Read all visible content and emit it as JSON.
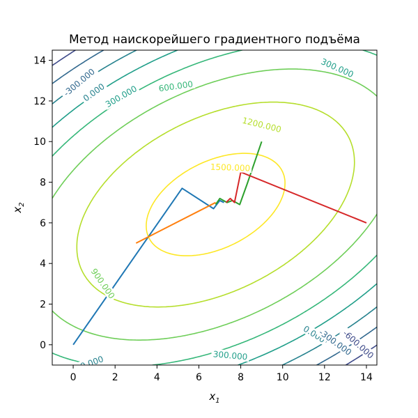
{
  "chart_data": {
    "type": "line",
    "title": "Метод наискорейшего градиентного подъёма",
    "xlabel": "x",
    "xlabel_sub": "1",
    "ylabel": "x",
    "ylabel_sub": "2",
    "xlim": [
      -1,
      14.5
    ],
    "ylim": [
      -1,
      14.5
    ],
    "xticks": [
      0,
      2,
      4,
      6,
      8,
      10,
      12,
      14
    ],
    "yticks": [
      0,
      2,
      4,
      6,
      8,
      10,
      12,
      14
    ],
    "grid": false,
    "contours": {
      "levels": [
        -600,
        -300,
        0,
        300,
        600,
        900,
        1200,
        1500
      ],
      "colors": [
        "#3b0f70",
        "#3e4a89",
        "#31688e",
        "#26828e",
        "#1f9e89",
        "#35b779",
        "#6ece58",
        "#b5de2b",
        "#fde725"
      ],
      "labels": [
        {
          "text": "-300.000",
          "x": 0.3,
          "y": 12.9,
          "angle": -40,
          "level": -300
        },
        {
          "text": "0.000",
          "x": 1.0,
          "y": 12.4,
          "angle": -36,
          "level": 0
        },
        {
          "text": "300.000",
          "x": 2.3,
          "y": 12.2,
          "angle": -30,
          "level": 300
        },
        {
          "text": "600.000",
          "x": 4.9,
          "y": 12.7,
          "angle": -8,
          "level": 600
        },
        {
          "text": "300.000",
          "x": 12.6,
          "y": 13.6,
          "angle": 24,
          "level": 300
        },
        {
          "text": "1200.000",
          "x": 9.0,
          "y": 10.8,
          "angle": 14,
          "level": 1200
        },
        {
          "text": "1500.000",
          "x": 7.5,
          "y": 8.7,
          "angle": 2,
          "level": 1500
        },
        {
          "text": "900.000",
          "x": 1.4,
          "y": 3.0,
          "angle": 55,
          "level": 900
        },
        {
          "text": "0.000",
          "x": 0.9,
          "y": -0.9,
          "angle": -20,
          "level": 0
        },
        {
          "text": "300.000",
          "x": 7.5,
          "y": -0.55,
          "angle": 5,
          "level": 300
        },
        {
          "text": "0.000",
          "x": 11.5,
          "y": 0.5,
          "angle": 32,
          "level": 0
        },
        {
          "text": "-300.000",
          "x": 12.5,
          "y": 0.1,
          "angle": 36,
          "level": -300
        },
        {
          "text": "-600.000",
          "x": 13.6,
          "y": 0.0,
          "angle": 42,
          "level": -600
        }
      ]
    },
    "series": [
      {
        "color": "#1f77b4",
        "x": [
          0,
          5.2,
          6.7,
          7.0,
          7.2
        ],
        "y": [
          0,
          7.7,
          6.7,
          7.1,
          7.0
        ]
      },
      {
        "color": "#ff7f0e",
        "x": [
          3,
          6.8
        ],
        "y": [
          5,
          7.0
        ]
      },
      {
        "color": "#2ca02c",
        "x": [
          9,
          8.3,
          7.95,
          7.6,
          7.35,
          7.0,
          6.8
        ],
        "y": [
          10,
          7.9,
          6.9,
          7.1,
          7.0,
          7.2,
          6.9
        ]
      },
      {
        "color": "#d62728",
        "x": [
          14,
          8.0,
          7.7,
          7.5,
          7.3
        ],
        "y": [
          6,
          8.5,
          7.0,
          7.2,
          7.0
        ]
      }
    ]
  }
}
